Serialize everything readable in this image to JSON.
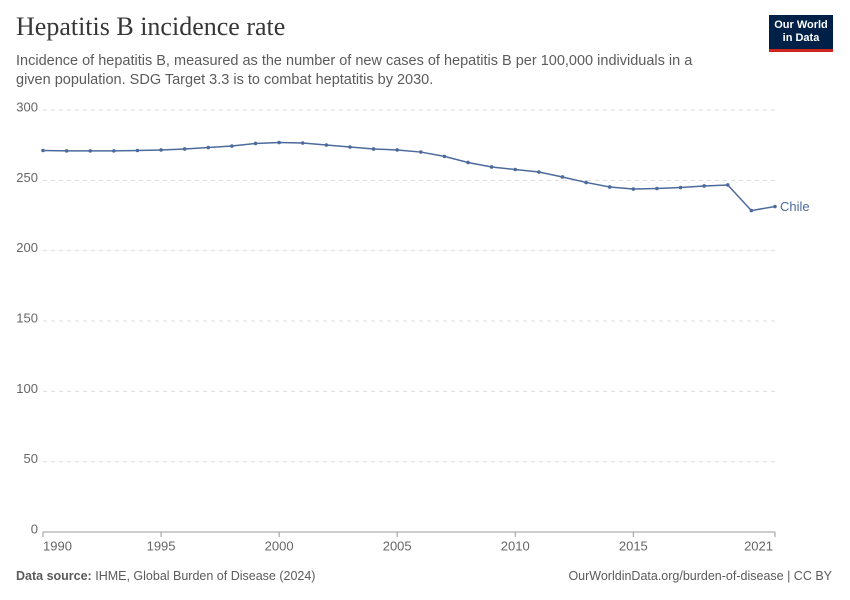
{
  "chart_data": {
    "type": "line",
    "title": "Hepatitis B incidence rate",
    "subtitle": "Incidence of hepatitis B, measured as the number of new cases of hepatitis B per 100,000 individuals in a given population. SDG Target 3.3 is to combat heptatitis by 2030.",
    "logo": [
      "Our World",
      "in Data"
    ],
    "source_label": "Data source:",
    "source": "IHME, Global Burden of Disease (2024)",
    "footer_right": "OurWorldinData.org/burden-of-disease | CC BY",
    "x": [
      1990,
      1991,
      1992,
      1993,
      1994,
      1995,
      1996,
      1997,
      1998,
      1999,
      2000,
      2001,
      2002,
      2003,
      2004,
      2005,
      2006,
      2007,
      2008,
      2009,
      2010,
      2011,
      2012,
      2013,
      2014,
      2015,
      2016,
      2017,
      2018,
      2019,
      2020,
      2021
    ],
    "series": [
      {
        "name": "Chile",
        "color": "#4c6a9c",
        "values": [
          271.2,
          270.9,
          270.9,
          270.9,
          271.2,
          271.6,
          272.3,
          273.3,
          274.4,
          276.2,
          276.9,
          276.5,
          275.1,
          273.7,
          272.3,
          271.6,
          270.1,
          267.0,
          262.7,
          259.5,
          257.7,
          255.9,
          252.4,
          248.5,
          245.3,
          243.8,
          244.2,
          244.9,
          246.0,
          246.7,
          228.5,
          231.4
        ]
      }
    ],
    "xlim": [
      1990,
      2021
    ],
    "xticks": [
      1990,
      1995,
      2000,
      2005,
      2010,
      2015,
      2021
    ],
    "ylim": [
      0,
      300
    ],
    "yticks": [
      0,
      50,
      100,
      150,
      200,
      250,
      300
    ],
    "grid": true
  }
}
